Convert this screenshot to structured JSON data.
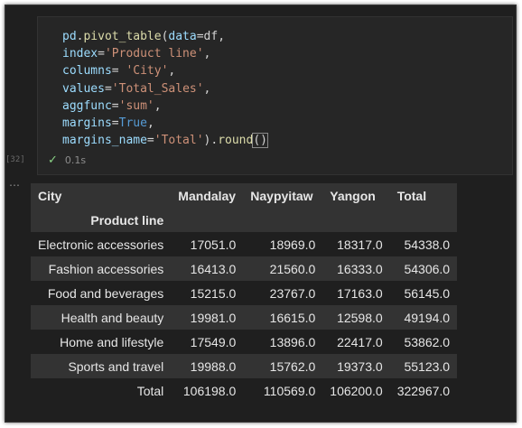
{
  "code": {
    "lines": [
      [
        {
          "t": "pd",
          "c": "var"
        },
        {
          "t": ".",
          "c": ""
        },
        {
          "t": "pivot_table",
          "c": "fn"
        },
        {
          "t": "(",
          "c": ""
        },
        {
          "t": "data",
          "c": "var"
        },
        {
          "t": "=df,",
          "c": ""
        }
      ],
      [
        {
          "t": "index",
          "c": "var"
        },
        {
          "t": "=",
          "c": ""
        },
        {
          "t": "'Product line'",
          "c": "str"
        },
        {
          "t": ",",
          "c": ""
        }
      ],
      [
        {
          "t": "columns",
          "c": "var"
        },
        {
          "t": "= ",
          "c": ""
        },
        {
          "t": "'City'",
          "c": "str"
        },
        {
          "t": ",",
          "c": ""
        }
      ],
      [
        {
          "t": "values",
          "c": "var"
        },
        {
          "t": "=",
          "c": ""
        },
        {
          "t": "'Total_Sales'",
          "c": "str"
        },
        {
          "t": ",",
          "c": ""
        }
      ],
      [
        {
          "t": "aggfunc",
          "c": "var"
        },
        {
          "t": "=",
          "c": ""
        },
        {
          "t": "'sum'",
          "c": "str"
        },
        {
          "t": ",",
          "c": ""
        }
      ],
      [
        {
          "t": "margins",
          "c": "var"
        },
        {
          "t": "=",
          "c": ""
        },
        {
          "t": "True",
          "c": "kw"
        },
        {
          "t": ",",
          "c": ""
        }
      ],
      [
        {
          "t": "margins_name",
          "c": "var"
        },
        {
          "t": "=",
          "c": ""
        },
        {
          "t": "'Total'",
          "c": "str"
        },
        {
          "t": ").",
          "c": ""
        },
        {
          "t": "round",
          "c": "fn"
        },
        {
          "t": "()",
          "c": "paren"
        }
      ]
    ]
  },
  "cell": {
    "exec_count": "[32]",
    "status_time": "0.1s",
    "status_icon": "check-icon",
    "more_icon": "ellipsis-icon"
  },
  "table": {
    "column_header_label": "City",
    "columns": [
      "Mandalay",
      "Naypyitaw",
      "Yangon",
      "Total"
    ],
    "index_name": "Product line",
    "rows": [
      {
        "label": "Electronic accessories",
        "values": [
          "17051.0",
          "18969.0",
          "18317.0",
          "54338.0"
        ]
      },
      {
        "label": "Fashion accessories",
        "values": [
          "16413.0",
          "21560.0",
          "16333.0",
          "54306.0"
        ]
      },
      {
        "label": "Food and beverages",
        "values": [
          "15215.0",
          "23767.0",
          "17163.0",
          "56145.0"
        ]
      },
      {
        "label": "Health and beauty",
        "values": [
          "19981.0",
          "16615.0",
          "12598.0",
          "49194.0"
        ]
      },
      {
        "label": "Home and lifestyle",
        "values": [
          "17549.0",
          "13896.0",
          "22417.0",
          "53862.0"
        ]
      },
      {
        "label": "Sports and travel",
        "values": [
          "19988.0",
          "15762.0",
          "19373.0",
          "55123.0"
        ]
      },
      {
        "label": "Total",
        "values": [
          "106198.0",
          "110569.0",
          "106200.0",
          "322967.0"
        ]
      }
    ]
  }
}
